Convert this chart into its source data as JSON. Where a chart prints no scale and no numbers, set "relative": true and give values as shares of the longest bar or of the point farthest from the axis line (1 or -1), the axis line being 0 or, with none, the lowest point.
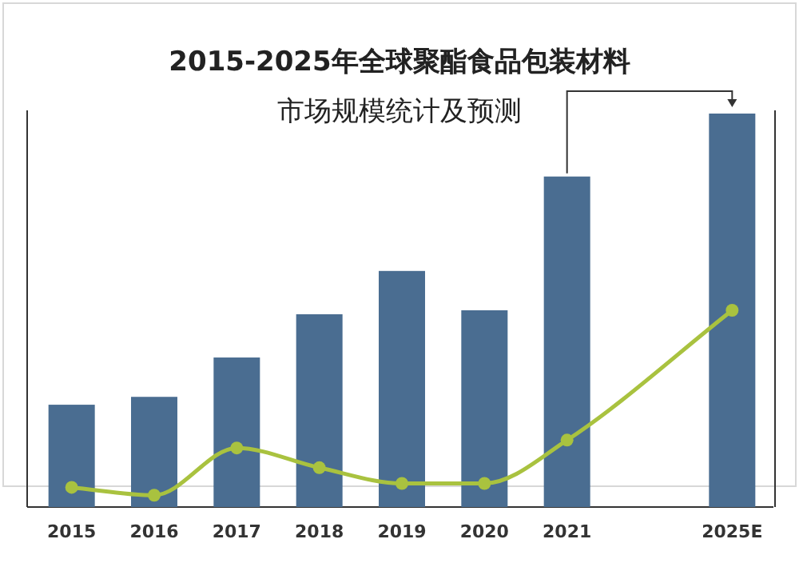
{
  "chart_data": {
    "type": "bar",
    "title": "2015-2025年全球聚酯食品包装材料",
    "subtitle": "市场规模统计及预测",
    "categories": [
      "2015",
      "2016",
      "2017",
      "2018",
      "2019",
      "2020",
      "2021",
      null,
      "2025E"
    ],
    "relative": true,
    "marker": "circle",
    "series": [
      {
        "color": "#4a6d91",
        "values": [
          0.26,
          0.28,
          0.38,
          0.49,
          0.6,
          0.5,
          0.84,
          null,
          1
        ]
      },
      {
        "type": "line",
        "color": "#a9c23f",
        "values": [
          0.05,
          0.03,
          0.15,
          0.1,
          0.06,
          0.06,
          0.17,
          null,
          0.5
        ]
      }
    ]
  }
}
